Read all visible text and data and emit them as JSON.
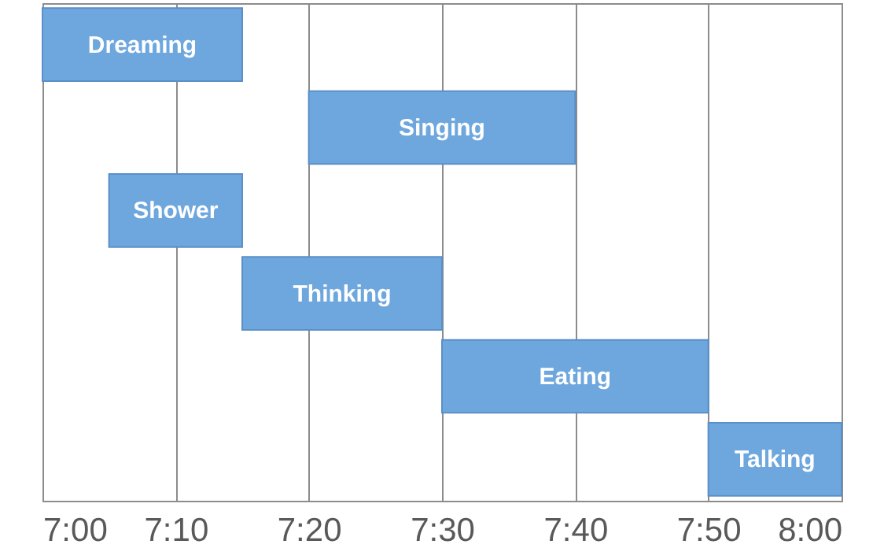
{
  "chart_data": {
    "type": "bar",
    "orientation": "horizontal",
    "categories": [
      "Dreaming",
      "Singing",
      "Shower",
      "Thinking",
      "Eating",
      "Talking"
    ],
    "base": [
      7,
      7.3333,
      7.0833,
      7.25,
      7.5,
      7.8333
    ],
    "values": [
      0.25,
      0.3333,
      0.1667,
      0.25,
      0.3333,
      0.1667
    ],
    "color": "#6ea7de",
    "xlim": [
      7,
      8
    ],
    "xticks": [
      {
        "value": 7,
        "label": "7:00"
      },
      {
        "value": 7.1667,
        "label": "7:10"
      },
      {
        "value": 7.3333,
        "label": "7:20"
      },
      {
        "value": 7.5,
        "label": "7:30"
      },
      {
        "value": 7.6667,
        "label": "7:40"
      },
      {
        "value": 7.8333,
        "label": "7:50"
      },
      {
        "value": 8,
        "label": "8:00"
      }
    ],
    "grid": "x",
    "tick_labels": "x"
  }
}
